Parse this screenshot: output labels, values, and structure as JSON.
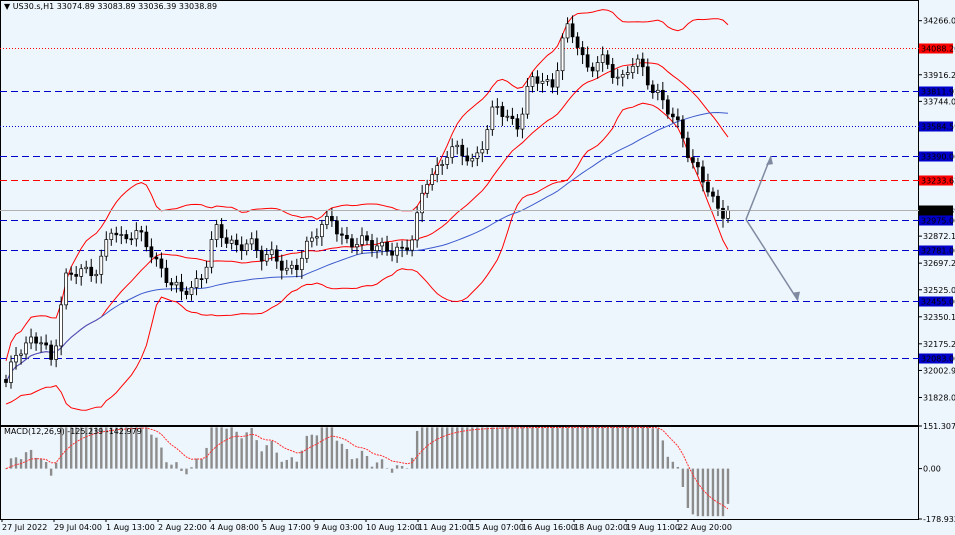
{
  "header": {
    "symbol_line": "US30.s,H1  33074.89 33083.89 33036.39 33038.89"
  },
  "chart_data": [
    {
      "type": "candlestick",
      "title": "",
      "price_range": [
        31650,
        34400
      ],
      "y_ticks": [
        34266.05,
        33916.25,
        33744.0,
        32872.15,
        32697.25,
        32525.0,
        32350.1,
        32175.25,
        32002.95,
        31828.05
      ],
      "current_price": 33038.89,
      "x_tick_labels": [
        "27 Jul 2022",
        "29 Jul 04:00",
        "1 Aug 13:00",
        "2 Aug 22:00",
        "4 Aug 08:00",
        "5 Aug 17:00",
        "9 Aug 03:00",
        "10 Aug 12:00",
        "11 Aug 21:00",
        "15 Aug 07:00",
        "16 Aug 16:00",
        "18 Aug 02:00",
        "19 Aug 11:00",
        "22 Aug 20:00"
      ],
      "close_path": [
        31900,
        32150,
        32200,
        32180,
        32050,
        32600,
        32620,
        32650,
        32680,
        32900,
        32850,
        32930,
        32800,
        32700,
        32600,
        32480,
        32550,
        32650,
        32900,
        32850,
        32820,
        32800,
        32750,
        32780,
        32600,
        32700,
        32850,
        32900,
        33000,
        32850,
        32800,
        32850,
        32820,
        32750,
        32780,
        32900,
        33200,
        33300,
        33450,
        33400,
        33350,
        33500,
        33700,
        33650,
        33600,
        33850,
        33900,
        33850,
        34200,
        34150,
        33950,
        34000,
        33950,
        33900,
        34000,
        33900,
        33800,
        33650,
        33550,
        33350,
        33200,
        33050,
        33040
      ],
      "levels": [
        {
          "label": "34088.20",
          "price": 34088.2,
          "color": "#ff0000",
          "style": "dotted"
        },
        {
          "label": "33811.92",
          "price": 33811.92,
          "color": "#0000cc",
          "style": "dashed"
        },
        {
          "label": "33584.59",
          "price": 33584.59,
          "color": "#0000cc",
          "style": "dotted"
        },
        {
          "label": "33390.00",
          "price": 33390.0,
          "color": "#0000cc",
          "style": "dashed"
        },
        {
          "label": "33233.62",
          "price": 33233.62,
          "color": "#ff0000",
          "style": "dashed"
        },
        {
          "label": "32975.00",
          "price": 32975.0,
          "color": "#0000cc",
          "style": "dashed"
        },
        {
          "label": "32781.00",
          "price": 32781.0,
          "color": "#0000cc",
          "style": "dashed"
        },
        {
          "label": "32455.00",
          "price": 32455.0,
          "color": "#0000cc",
          "style": "dashed"
        },
        {
          "label": "32083.00",
          "price": 32083.0,
          "color": "#0000cc",
          "style": "dashed"
        }
      ],
      "projection": {
        "origin": 32980,
        "up_target": 33390,
        "down_mid": 32781,
        "down_target": 32455
      }
    },
    {
      "type": "bar",
      "title": "MACD(12,26,9) -125.239 -142.979",
      "y_range": [
        -178.932,
        151.307
      ],
      "y_ticks": [
        151.307,
        0.0,
        -178.932
      ],
      "indicator": "MACD",
      "params": [
        12,
        26,
        9
      ],
      "macd": -125.239,
      "signal": -142.979
    }
  ],
  "colors": {
    "background": "#eef6fd",
    "candle": "#000000",
    "bollinger": "#ff0000",
    "moving_average": "#3c5acd",
    "histogram": "#8c8c8c",
    "signal": "#ff3030",
    "projection": "#7f8aa0",
    "red_tag": "#ff0000",
    "blue_tag": "#0000cc",
    "price_tag": "#000000"
  }
}
